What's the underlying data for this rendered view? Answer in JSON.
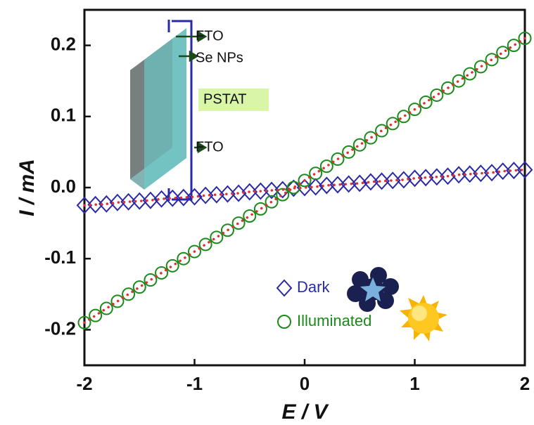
{
  "chart_data": {
    "type": "scatter",
    "x_label": "E / V",
    "y_label": "I / mA",
    "x": [
      -2,
      -1.9,
      -1.8,
      -1.7,
      -1.6,
      -1.5,
      -1.4,
      -1.3,
      -1.2,
      -1.1,
      -1,
      -0.9,
      -0.8,
      -0.7,
      -0.6,
      -0.5,
      -0.4,
      -0.3,
      -0.2,
      -0.1,
      0,
      0.1,
      0.2,
      0.3,
      0.4,
      0.5,
      0.6,
      0.7,
      0.8,
      0.9,
      1,
      1.1,
      1.2,
      1.3,
      1.4,
      1.5,
      1.6,
      1.7,
      1.8,
      1.9,
      2
    ],
    "series": [
      {
        "name": "Dark",
        "color": "#2a2aa8",
        "marker": "diamond",
        "values": [
          -0.025,
          -0.024,
          -0.023,
          -0.021,
          -0.02,
          -0.019,
          -0.018,
          -0.016,
          -0.015,
          -0.014,
          -0.013,
          -0.011,
          -0.01,
          -0.009,
          -0.008,
          -0.006,
          -0.005,
          -0.004,
          -0.003,
          -0.001,
          0,
          0.001,
          0.003,
          0.004,
          0.005,
          0.006,
          0.008,
          0.009,
          0.01,
          0.011,
          0.013,
          0.014,
          0.015,
          0.016,
          0.018,
          0.019,
          0.02,
          0.021,
          0.023,
          0.024,
          0.025
        ]
      },
      {
        "name": "Illuminated",
        "color": "#1a8a1a",
        "marker": "circle",
        "values": [
          -0.19,
          -0.18,
          -0.17,
          -0.16,
          -0.15,
          -0.14,
          -0.13,
          -0.12,
          -0.11,
          -0.1,
          -0.09,
          -0.08,
          -0.07,
          -0.06,
          -0.05,
          -0.04,
          -0.03,
          -0.02,
          -0.01,
          0,
          0.01,
          0.02,
          0.03,
          0.04,
          0.05,
          0.06,
          0.07,
          0.08,
          0.09,
          0.1,
          0.11,
          0.12,
          0.13,
          0.14,
          0.15,
          0.16,
          0.17,
          0.18,
          0.19,
          0.2,
          0.21
        ]
      }
    ],
    "fit_line_color": "#e03030",
    "xlim": [
      -2,
      2
    ],
    "ylim": [
      -0.25,
      0.25
    ],
    "xticks": [
      -2,
      -1,
      0,
      1,
      2
    ],
    "yticks": [
      -0.2,
      -0.1,
      {
        "value": 0,
        "label": "0.0"
      },
      0.1,
      0.2
    ],
    "legend": "lower right",
    "inset_labels": [
      "FTO",
      "Se NPs",
      "PSTAT",
      "FTO"
    ]
  }
}
